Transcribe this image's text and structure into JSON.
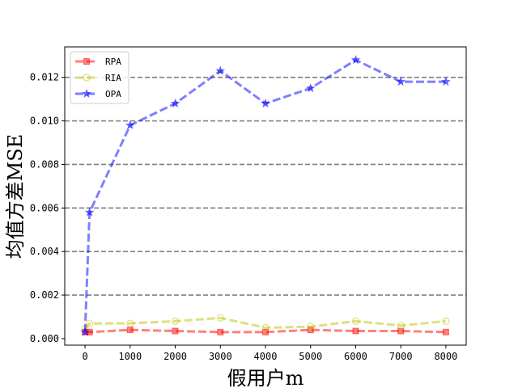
{
  "chart_data": {
    "type": "line",
    "xlabel": "假用户m",
    "ylabel": "均值方差MSE",
    "x": [
      0,
      100,
      1000,
      2000,
      3000,
      4000,
      5000,
      6000,
      7000,
      8000
    ],
    "xticks": [
      0,
      1000,
      2000,
      3000,
      4000,
      5000,
      6000,
      7000,
      8000
    ],
    "xtick_labels": [
      "0",
      "1000",
      "2000",
      "3000",
      "4000",
      "5000",
      "6000",
      "7000",
      "8000"
    ],
    "xlim": [
      -450,
      8450
    ],
    "ylim": [
      -0.0003,
      0.0134
    ],
    "yticks": [
      0.0,
      0.002,
      0.004,
      0.006,
      0.008,
      0.01,
      0.012
    ],
    "ytick_labels": [
      "0.000",
      "0.002",
      "0.004",
      "0.006",
      "0.008",
      "0.010",
      "0.012"
    ],
    "grid": "horizontal dashed",
    "legend_position": "top-left",
    "series": [
      {
        "name": "RPA",
        "color": "#ff0000",
        "marker": "square",
        "values": [
          0.0003,
          0.0003,
          0.0004,
          0.00035,
          0.0003,
          0.0003,
          0.0004,
          0.00035,
          0.00035,
          0.0003
        ]
      },
      {
        "name": "RIA",
        "color": "#bfbf00",
        "marker": "circle",
        "values": [
          0.00045,
          0.0007,
          0.0007,
          0.0008,
          0.00095,
          0.0005,
          0.00055,
          0.0008,
          0.0006,
          0.0008
        ]
      },
      {
        "name": "OPA",
        "color": "#0000ff",
        "marker": "star",
        "values": [
          0.0003,
          0.0058,
          0.0098,
          0.0108,
          0.0123,
          0.0108,
          0.0115,
          0.0128,
          0.0118,
          0.0118
        ]
      }
    ]
  }
}
